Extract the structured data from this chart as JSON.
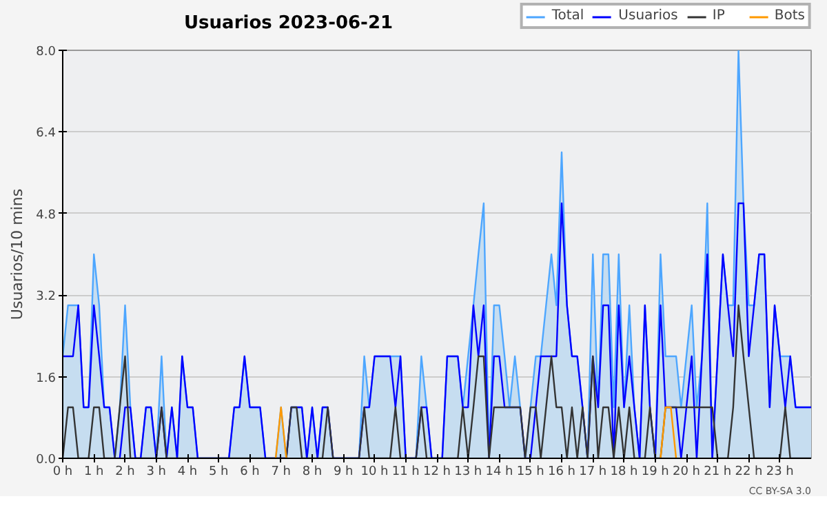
{
  "chart_data": {
    "type": "line",
    "title": "Usuarios  2023-06-21",
    "ylabel": "Usuarios/10 mins",
    "x": [
      0,
      0.17,
      0.33,
      0.5,
      0.67,
      0.83,
      1,
      1.17,
      1.33,
      1.5,
      1.67,
      1.83,
      2,
      2.17,
      2.33,
      2.5,
      2.67,
      2.83,
      3,
      3.17,
      3.33,
      3.5,
      3.67,
      3.83,
      4,
      4.17,
      4.33,
      4.5,
      4.67,
      4.83,
      5,
      5.17,
      5.33,
      5.5,
      5.67,
      5.83,
      6,
      6.17,
      6.33,
      6.5,
      6.67,
      6.83,
      7,
      7.17,
      7.33,
      7.5,
      7.67,
      7.83,
      8,
      8.17,
      8.33,
      8.5,
      8.67,
      8.83,
      9,
      9.17,
      9.33,
      9.5,
      9.67,
      9.83,
      10,
      10.17,
      10.33,
      10.5,
      10.67,
      10.83,
      11,
      11.17,
      11.33,
      11.5,
      11.67,
      11.83,
      12,
      12.17,
      12.33,
      12.5,
      12.67,
      12.83,
      13,
      13.17,
      13.33,
      13.5,
      13.67,
      13.83,
      14,
      14.17,
      14.33,
      14.5,
      14.67,
      14.83,
      15,
      15.17,
      15.33,
      15.5,
      15.67,
      15.83,
      16,
      16.17,
      16.33,
      16.5,
      16.67,
      16.83,
      17,
      17.17,
      17.33,
      17.5,
      17.67,
      17.83,
      18,
      18.17,
      18.33,
      18.5,
      18.67,
      18.83,
      19,
      19.17,
      19.33,
      19.5,
      19.67,
      19.83,
      20,
      20.17,
      20.33,
      20.5,
      20.67,
      20.83,
      21,
      21.17,
      21.33,
      21.5,
      21.67,
      21.83,
      22,
      22.17,
      22.33,
      22.5,
      22.67,
      22.83,
      23,
      23.17,
      23.33,
      23.5,
      23.67,
      23.83,
      24
    ],
    "series": [
      {
        "name": "Total",
        "type": "area",
        "color": "#4da6ff",
        "values": [
          2,
          3,
          3,
          3,
          1,
          1,
          4,
          3,
          1,
          1,
          0,
          1,
          3,
          1,
          0,
          0,
          1,
          1,
          0,
          2,
          0,
          1,
          0,
          2,
          1,
          1,
          0,
          0,
          0,
          0,
          0,
          0,
          0,
          1,
          1,
          2,
          1,
          1,
          1,
          0,
          0,
          0,
          1,
          0,
          1,
          1,
          1,
          0,
          1,
          0,
          1,
          1,
          0,
          0,
          0,
          0,
          0,
          0,
          2,
          1,
          2,
          2,
          2,
          2,
          2,
          2,
          0,
          0,
          0,
          2,
          1,
          0,
          0,
          0,
          2,
          2,
          2,
          1,
          2,
          3,
          4,
          5,
          0,
          3,
          3,
          2,
          1,
          2,
          1,
          0,
          1,
          2,
          2,
          3,
          4,
          3,
          6,
          3,
          2,
          2,
          1,
          0,
          4,
          1,
          4,
          4,
          1,
          4,
          1,
          3,
          1,
          0,
          3,
          1,
          0,
          4,
          2,
          2,
          2,
          1,
          2,
          3,
          1,
          2,
          5,
          0,
          2,
          4,
          3,
          3,
          8,
          5,
          3,
          3,
          4,
          4,
          1,
          3,
          2,
          2,
          2,
          1,
          1,
          1,
          1
        ]
      },
      {
        "name": "Usuarios",
        "color": "#0000ff",
        "values": [
          2,
          2,
          2,
          3,
          1,
          1,
          3,
          2,
          1,
          1,
          0,
          0,
          1,
          1,
          0,
          0,
          1,
          1,
          0,
          1,
          0,
          1,
          0,
          2,
          1,
          1,
          0,
          0,
          0,
          0,
          0,
          0,
          0,
          1,
          1,
          2,
          1,
          1,
          1,
          0,
          0,
          0,
          0,
          0,
          1,
          1,
          1,
          0,
          1,
          0,
          1,
          1,
          0,
          0,
          0,
          0,
          0,
          0,
          1,
          1,
          2,
          2,
          2,
          2,
          1,
          2,
          0,
          0,
          0,
          1,
          1,
          0,
          0,
          0,
          2,
          2,
          2,
          1,
          1,
          3,
          2,
          3,
          0,
          2,
          2,
          1,
          1,
          1,
          1,
          0,
          0,
          1,
          2,
          2,
          2,
          2,
          5,
          3,
          2,
          2,
          1,
          0,
          2,
          1,
          3,
          3,
          0,
          3,
          1,
          2,
          1,
          0,
          3,
          1,
          0,
          3,
          1,
          1,
          1,
          0,
          1,
          2,
          0,
          2,
          4,
          0,
          2,
          4,
          3,
          2,
          5,
          5,
          2,
          3,
          4,
          4,
          1,
          3,
          2,
          1,
          2,
          1,
          1,
          1,
          1
        ]
      },
      {
        "name": "IP",
        "color": "#333333",
        "values": [
          0,
          1,
          1,
          0,
          0,
          0,
          1,
          1,
          0,
          0,
          0,
          1,
          2,
          0,
          0,
          0,
          0,
          0,
          0,
          1,
          0,
          0,
          0,
          0,
          0,
          0,
          0,
          0,
          0,
          0,
          0,
          0,
          0,
          0,
          0,
          0,
          0,
          0,
          0,
          0,
          0,
          0,
          0,
          0,
          1,
          1,
          0,
          0,
          0,
          0,
          0,
          1,
          0,
          0,
          0,
          0,
          0,
          0,
          1,
          0,
          0,
          0,
          0,
          0,
          1,
          0,
          0,
          0,
          0,
          1,
          0,
          0,
          0,
          0,
          0,
          0,
          0,
          1,
          0,
          1,
          2,
          2,
          0,
          1,
          1,
          1,
          1,
          1,
          1,
          0,
          1,
          1,
          0,
          1,
          2,
          1,
          1,
          0,
          1,
          0,
          1,
          0,
          2,
          0,
          1,
          1,
          0,
          1,
          0,
          1,
          0,
          0,
          0,
          1,
          0,
          0,
          1,
          1,
          1,
          1,
          1,
          1,
          1,
          1,
          1,
          1,
          0,
          0,
          0,
          1,
          3,
          2,
          1,
          0,
          0,
          0,
          0,
          0,
          0,
          1,
          0,
          0,
          0,
          0,
          0
        ]
      },
      {
        "name": "Bots",
        "color": "#ff9900",
        "values": [
          null,
          null,
          null,
          null,
          null,
          null,
          null,
          null,
          null,
          null,
          null,
          null,
          null,
          null,
          null,
          null,
          null,
          null,
          null,
          null,
          null,
          null,
          null,
          null,
          null,
          null,
          null,
          null,
          null,
          null,
          null,
          null,
          null,
          null,
          null,
          null,
          null,
          null,
          null,
          null,
          null,
          0,
          1,
          0,
          null,
          null,
          null,
          null,
          null,
          null,
          null,
          null,
          null,
          null,
          null,
          null,
          null,
          null,
          null,
          null,
          null,
          null,
          null,
          null,
          null,
          null,
          null,
          null,
          null,
          null,
          null,
          null,
          null,
          null,
          null,
          null,
          null,
          null,
          null,
          null,
          null,
          null,
          null,
          null,
          null,
          null,
          null,
          null,
          null,
          null,
          null,
          null,
          null,
          null,
          null,
          null,
          null,
          null,
          null,
          null,
          null,
          null,
          null,
          null,
          null,
          null,
          null,
          null,
          null,
          null,
          null,
          null,
          null,
          null,
          null,
          0,
          1,
          1,
          0,
          null,
          null,
          null,
          null,
          null,
          null,
          null,
          null,
          null,
          null,
          null,
          null,
          null,
          null,
          null,
          null,
          null,
          null,
          null,
          null,
          null,
          null,
          null,
          null,
          null,
          null
        ]
      }
    ],
    "xlim": [
      0,
      24
    ],
    "xticks": [
      {
        "value": 0,
        "label": "0 h"
      },
      {
        "value": 1,
        "label": "1 h"
      },
      {
        "value": 2,
        "label": "2 h"
      },
      {
        "value": 3,
        "label": "3 h"
      },
      {
        "value": 4,
        "label": "4 h"
      },
      {
        "value": 5,
        "label": "5 h"
      },
      {
        "value": 6,
        "label": "6 h"
      },
      {
        "value": 7,
        "label": "7 h"
      },
      {
        "value": 8,
        "label": "8 h"
      },
      {
        "value": 9,
        "label": "9 h"
      },
      {
        "value": 10,
        "label": "10 h"
      },
      {
        "value": 11,
        "label": "11 h"
      },
      {
        "value": 12,
        "label": "12 h"
      },
      {
        "value": 13,
        "label": "13 h"
      },
      {
        "value": 14,
        "label": "14 h"
      },
      {
        "value": 15,
        "label": "15 h"
      },
      {
        "value": 16,
        "label": "16 h"
      },
      {
        "value": 17,
        "label": "17 h"
      },
      {
        "value": 18,
        "label": "18 h"
      },
      {
        "value": 19,
        "label": "19 h"
      },
      {
        "value": 20,
        "label": "20 h"
      },
      {
        "value": 21,
        "label": "21 h"
      },
      {
        "value": 22,
        "label": "22 h"
      },
      {
        "value": 23,
        "label": "23 h"
      }
    ],
    "ylim": [
      0,
      8
    ],
    "yticks": [
      {
        "value": 0,
        "label": "0.0"
      },
      {
        "value": 1.6,
        "label": "1.6"
      },
      {
        "value": 3.2,
        "label": "3.2"
      },
      {
        "value": 4.8,
        "label": "4.8"
      },
      {
        "value": 6.4,
        "label": "6.4"
      },
      {
        "value": 8,
        "label": "8.0"
      }
    ],
    "grid": "y",
    "legend": "top right",
    "marker": "none",
    "line_style": "solid",
    "annotations": [
      "CC BY-SA 3.0"
    ]
  }
}
